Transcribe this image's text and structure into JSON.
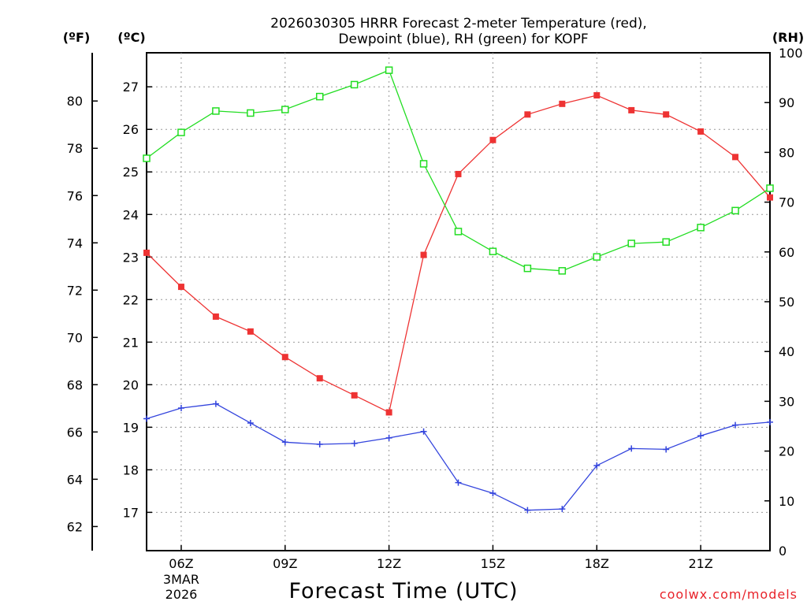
{
  "chart_data": {
    "type": "line",
    "title_line1": "2026030305 HRRR Forecast 2-meter Temperature (red),",
    "title_line2": "Dewpoint (blue), RH (green) for KOPF",
    "left_outer_unit": "(ºF)",
    "left_inner_unit": "(ºC)",
    "right_unit": "(RH)",
    "xlabel": "Forecast Time (UTC)",
    "credit": "coolwx.com/models",
    "x_hours": [
      5,
      6,
      7,
      8,
      9,
      10,
      11,
      12,
      13,
      14,
      15,
      16,
      17,
      18,
      19,
      20,
      21,
      22,
      23
    ],
    "xlim": [
      5,
      23
    ],
    "x_ticks": [
      {
        "hour": 6,
        "label": "06Z",
        "sub1": "3MAR",
        "sub2": "2026"
      },
      {
        "hour": 9,
        "label": "09Z"
      },
      {
        "hour": 12,
        "label": "12Z"
      },
      {
        "hour": 15,
        "label": "15Z"
      },
      {
        "hour": 18,
        "label": "18Z"
      },
      {
        "hour": 21,
        "label": "21Z"
      }
    ],
    "ylim_c": [
      16.1,
      27.8
    ],
    "y_ticks_c": [
      17,
      18,
      19,
      20,
      21,
      22,
      23,
      24,
      25,
      26,
      27
    ],
    "y_ticks_f": [
      62,
      64,
      66,
      68,
      70,
      72,
      74,
      76,
      78,
      80
    ],
    "ylim_rh": [
      0,
      100
    ],
    "y_ticks_rh": [
      0,
      10,
      20,
      30,
      40,
      50,
      60,
      70,
      80,
      90,
      100
    ],
    "series": [
      {
        "name": "Temperature",
        "units": "C",
        "color": "#ee3333",
        "marker": "filled-square",
        "values": [
          23.1,
          22.3,
          21.6,
          21.25,
          20.65,
          20.15,
          19.75,
          19.35,
          23.05,
          24.95,
          25.75,
          26.35,
          26.6,
          26.8,
          26.45,
          26.35,
          25.95,
          25.35,
          24.4
        ]
      },
      {
        "name": "Dewpoint",
        "units": "C",
        "color": "#3344dd",
        "marker": "plus",
        "values": [
          19.2,
          19.45,
          19.55,
          19.1,
          18.65,
          18.6,
          18.62,
          18.75,
          18.9,
          17.7,
          17.45,
          17.05,
          17.08,
          18.1,
          18.5,
          18.48,
          18.8,
          19.05,
          19.12
        ]
      },
      {
        "name": "RH",
        "units": "%",
        "color": "#22dd22",
        "marker": "open-square",
        "values": [
          78.8,
          84,
          88.3,
          87.9,
          88.6,
          91.2,
          93.6,
          96.5,
          77.7,
          64.1,
          60.1,
          56.7,
          56.2,
          59,
          61.7,
          62,
          64.9,
          68.3,
          72.8
        ]
      }
    ]
  }
}
